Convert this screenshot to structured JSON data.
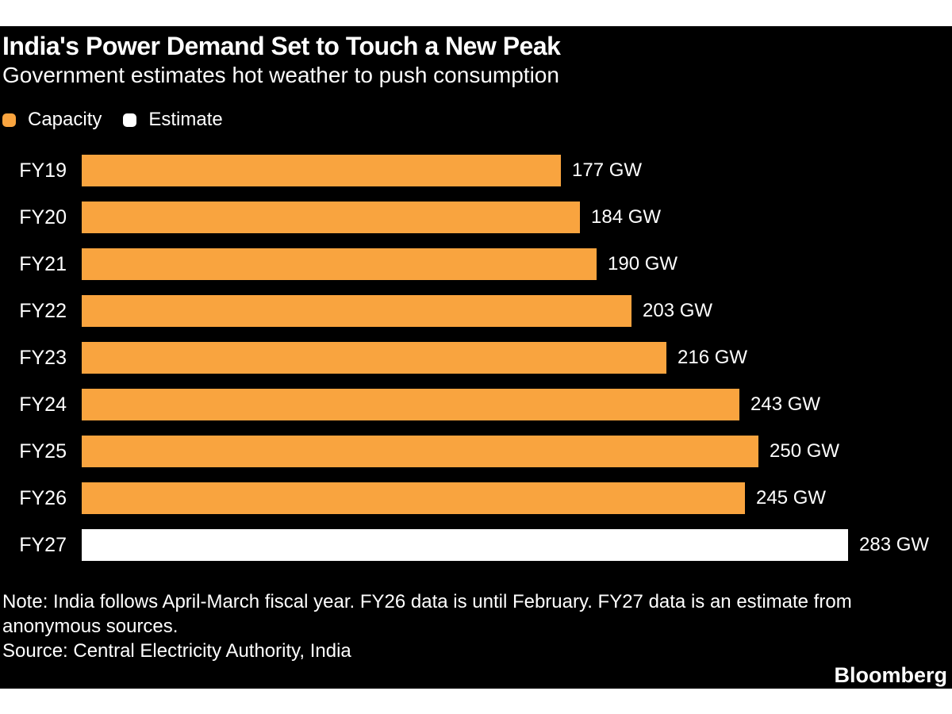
{
  "header": {
    "title": "India's Power Demand Set to Touch a New Peak",
    "subtitle": "Government estimates hot weather to push consumption"
  },
  "legend": [
    {
      "label": "Capacity",
      "color": "#F9A43F"
    },
    {
      "label": "Estimate",
      "color": "#FFFFFF"
    }
  ],
  "chart_data": {
    "type": "bar",
    "orientation": "horizontal",
    "title": "India's Power Demand Set to Touch a New Peak",
    "subtitle": "Government estimates hot weather to push consumption",
    "categories": [
      "FY19",
      "FY20",
      "FY21",
      "FY22",
      "FY23",
      "FY24",
      "FY25",
      "FY26",
      "FY27"
    ],
    "values": [
      177,
      184,
      190,
      203,
      216,
      243,
      250,
      245,
      283
    ],
    "unit": "GW",
    "value_labels": [
      "177 GW",
      "184 GW",
      "190 GW",
      "203 GW",
      "216 GW",
      "243 GW",
      "250 GW",
      "245 GW",
      "283 GW"
    ],
    "series_by_row": [
      "capacity",
      "capacity",
      "capacity",
      "capacity",
      "capacity",
      "capacity",
      "capacity",
      "capacity",
      "estimate"
    ],
    "colors": {
      "capacity": "#F9A43F",
      "estimate": "#FFFFFF"
    },
    "xlabel": "",
    "ylabel": "",
    "xmax": 283,
    "grid": false,
    "legend_position": "top",
    "background": "#000000"
  },
  "footer": {
    "note": "Note: India follows April-March fiscal year. FY26 data is until February. FY27 data is an estimate from anonymous sources.",
    "source": "Source: Central Electricity Authority, India",
    "logo": "Bloomberg"
  }
}
